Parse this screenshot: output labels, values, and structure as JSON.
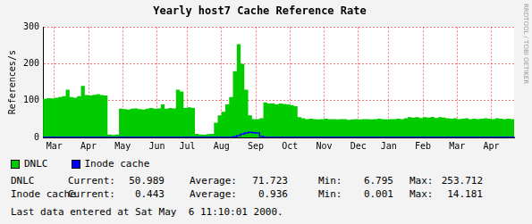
{
  "chart_data": {
    "type": "area",
    "title": "Yearly host7 Cache Reference Rate",
    "ylabel": "References/s",
    "categories": [
      null,
      null,
      null,
      "Mar",
      null,
      null,
      null,
      null,
      null,
      null,
      null,
      null,
      "Apr",
      null,
      null,
      null,
      null,
      null,
      null,
      null,
      null,
      "May",
      null,
      null,
      null,
      null,
      null,
      null,
      null,
      null,
      "Jun",
      null,
      null,
      null,
      null,
      null,
      null,
      null,
      "Jul",
      null,
      null,
      null,
      null,
      null,
      null,
      null,
      null,
      "Aug",
      null,
      null,
      null,
      null,
      null,
      null,
      null,
      null,
      "Sep",
      null,
      null,
      null,
      null,
      null,
      null,
      null,
      null,
      "Oct",
      null,
      null,
      null,
      null,
      null,
      null,
      null,
      null,
      "Nov",
      null,
      null,
      null,
      null,
      null,
      null,
      null,
      null,
      "Dec",
      null,
      null,
      null,
      null,
      null,
      null,
      null,
      "Jan",
      null,
      null,
      null,
      null,
      null,
      null,
      null,
      null,
      "Feb",
      null,
      null,
      null,
      null,
      null,
      null,
      null,
      null,
      "Mar",
      null,
      null,
      null,
      null,
      null,
      null,
      null,
      null,
      "Apr",
      null,
      null,
      null,
      null,
      null,
      null
    ],
    "series": [
      {
        "name": "DNLC",
        "color": "#00cc00",
        "values": [
          105,
          107,
          106,
          108,
          110,
          112,
          130,
          110,
          108,
          112,
          140,
          115,
          114,
          116,
          118,
          115,
          114,
          8,
          6.795,
          8,
          78,
          77,
          76,
          78,
          79,
          77,
          76,
          78,
          80,
          78,
          79,
          90,
          78,
          80,
          79,
          130,
          125,
          80,
          82,
          80,
          10,
          8,
          7,
          9,
          10,
          40,
          60,
          70,
          90,
          110,
          180,
          253.712,
          200,
          130,
          60,
          50,
          50,
          52,
          95,
          92,
          93,
          90,
          92,
          91,
          90,
          88,
          85,
          55,
          52,
          50,
          51,
          50,
          49,
          50,
          51,
          50,
          50,
          49,
          50,
          50,
          48,
          49,
          50,
          49,
          50,
          50,
          49,
          50,
          51,
          50,
          49,
          50,
          50,
          51,
          50,
          52,
          55,
          54,
          55,
          53,
          55,
          54,
          56,
          53,
          55,
          54,
          52,
          51,
          52,
          50,
          51,
          52,
          50,
          51,
          50,
          51,
          52,
          51,
          50,
          52,
          51,
          50,
          51,
          50,
          50.989
        ]
      },
      {
        "name": "Inode cache",
        "color": "#0000ff",
        "values": [
          0.6,
          0.6,
          0.7,
          0.6,
          0.6,
          0.7,
          0.8,
          0.6,
          0.6,
          0.7,
          0.9,
          0.7,
          0.6,
          0.7,
          0.7,
          0.6,
          0.6,
          0.01,
          0.001,
          0.01,
          0.8,
          0.8,
          0.8,
          0.8,
          0.8,
          0.8,
          0.8,
          0.8,
          0.8,
          0.8,
          0.9,
          0.9,
          0.9,
          0.9,
          0.9,
          0.9,
          0.9,
          0.9,
          0.9,
          0.9,
          0.7,
          0.7,
          0.7,
          0.7,
          0.7,
          0.7,
          0.7,
          0.7,
          0.7,
          0.7,
          2,
          5,
          9,
          12,
          14.181,
          13,
          12,
          3,
          0.6,
          0.6,
          0.6,
          0.6,
          0.6,
          0.6,
          0.6,
          0.6,
          0.6,
          0.5,
          0.5,
          0.5,
          0.5,
          0.5,
          0.5,
          0.5,
          0.5,
          0.5,
          0.5,
          0.5,
          0.5,
          0.5,
          0.5,
          0.5,
          0.5,
          0.5,
          0.5,
          0.5,
          0.5,
          0.5,
          0.5,
          0.5,
          0.5,
          0.5,
          0.5,
          0.5,
          0.5,
          0.5,
          0.5,
          0.5,
          0.5,
          0.5,
          0.5,
          0.5,
          0.5,
          0.5,
          0.5,
          0.5,
          0.5,
          0.5,
          0.5,
          0.5,
          0.5,
          0.5,
          0.5,
          0.5,
          0.5,
          0.5,
          0.5,
          0.5,
          0.5,
          0.5,
          0.5,
          0.5,
          0.5,
          0.5,
          0.443
        ]
      }
    ],
    "ylim": [
      0,
      300
    ],
    "yticks": [
      0,
      100,
      200,
      300
    ],
    "grid": true,
    "legend": "bottom-left"
  },
  "stats": {
    "labels": [
      "Current:",
      "Average:",
      "Min:",
      "Max:"
    ],
    "rows": [
      {
        "name": "DNLC",
        "values": [
          50.989,
          71.723,
          6.795,
          253.712
        ]
      },
      {
        "name": "Inode cache",
        "values": [
          0.443,
          0.936,
          0.001,
          14.181
        ]
      }
    ]
  },
  "footer": "Last data entered at Sat May  6 11:10:01 2000.",
  "side_text": "RRDTOOL / TOBI OETIKER"
}
